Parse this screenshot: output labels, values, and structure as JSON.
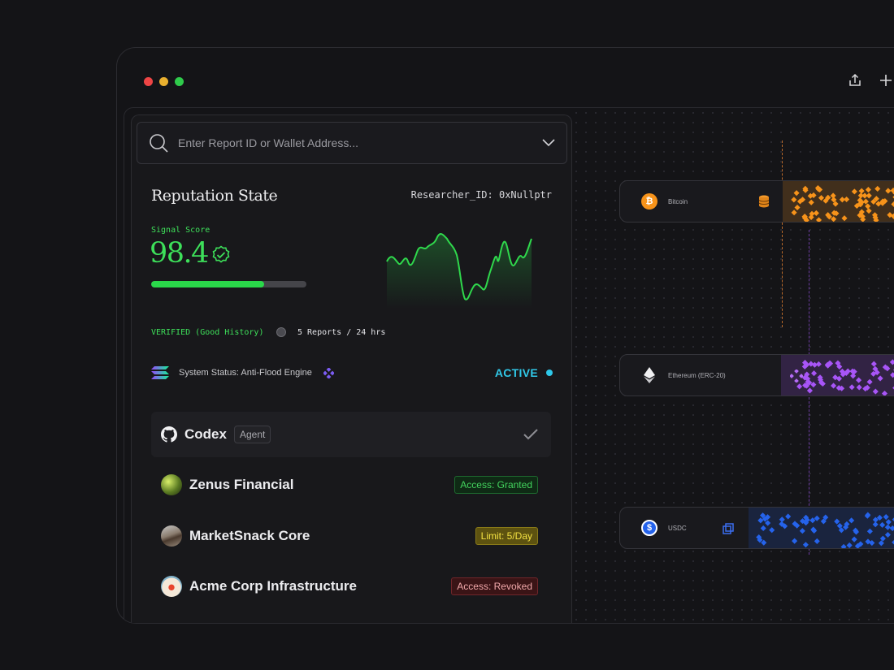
{
  "search": {
    "placeholder": "Enter Report ID or Wallet Address..."
  },
  "reputation": {
    "title": "Reputation State",
    "researcher_id": "Researcher_ID: 0xNullptr",
    "signal_label": "Signal Score",
    "score": "98.4",
    "progress": 0.73,
    "verified": "VERIFIED (Good History)",
    "reports": "5 Reports / 24 hrs"
  },
  "system": {
    "label": "System Status: Anti-Flood Engine",
    "status": "ACTIVE"
  },
  "agents": [
    {
      "name": "Codex",
      "tag": "Agent",
      "selected": true
    },
    {
      "name": "Zenus Financial",
      "badge": "Access: Granted",
      "badge_color": "#43d35e"
    },
    {
      "name": "MarketSnack Core",
      "badge": "Limit: 5/Day",
      "badge_color": "#f2e042"
    },
    {
      "name": "Acme Corp Infrastructure",
      "badge": "Access: Revoked",
      "badge_color": "#f0a7a9"
    }
  ],
  "assets": [
    {
      "name": "Bitcoin",
      "color": "#f7931a",
      "icon": "bitcoin-icon"
    },
    {
      "name": "Ethereum (ERC-20)",
      "color": "#a855f7",
      "icon": "ethereum-icon"
    },
    {
      "name": "USDC",
      "color": "#2563eb",
      "icon": "usdc-icon"
    }
  ],
  "colors": {
    "accent_green": "#3de05a",
    "active_cyan": "#30c8e8",
    "background": "#141417"
  }
}
